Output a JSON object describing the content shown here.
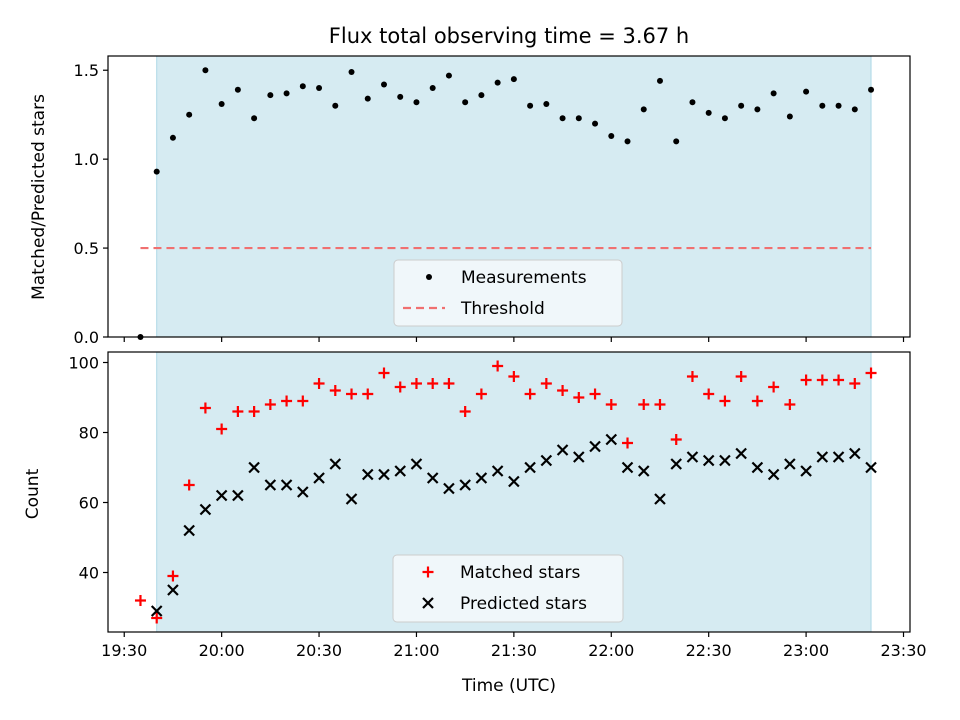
{
  "chart_data": [
    {
      "type": "scatter",
      "title": "Flux total observing time = 3.67 h",
      "ylabel": "Matched/Predicted stars",
      "xlabel": "",
      "xlim": [
        "19:25",
        "23:32"
      ],
      "ylim": [
        0,
        1.58
      ],
      "xticks": [
        "19:30",
        "20:00",
        "20:30",
        "21:00",
        "21:30",
        "22:00",
        "22:30",
        "23:00",
        "23:30"
      ],
      "yticks": [
        0.0,
        0.5,
        1.0,
        1.5
      ],
      "ytick_labels": [
        "0.0",
        "0.5",
        "1.0",
        "1.5"
      ],
      "shaded_span": [
        "19:40",
        "23:20"
      ],
      "grid": false,
      "legend_position": "lower-center",
      "series": [
        {
          "name": "Measurements",
          "kind": "scatter",
          "color": "#000000",
          "x": [
            "19:35",
            "19:40",
            "19:45",
            "19:50",
            "19:55",
            "20:00",
            "20:05",
            "20:10",
            "20:15",
            "20:20",
            "20:25",
            "20:30",
            "20:35",
            "20:40",
            "20:45",
            "20:50",
            "20:55",
            "21:00",
            "21:05",
            "21:10",
            "21:15",
            "21:20",
            "21:25",
            "21:30",
            "21:35",
            "21:40",
            "21:45",
            "21:50",
            "21:55",
            "22:00",
            "22:05",
            "22:10",
            "22:15",
            "22:20",
            "22:25",
            "22:30",
            "22:35",
            "22:40",
            "22:45",
            "22:50",
            "22:55",
            "23:00",
            "23:05",
            "23:10",
            "23:15",
            "23:20"
          ],
          "y": [
            0.0,
            0.93,
            1.12,
            1.25,
            1.5,
            1.31,
            1.39,
            1.23,
            1.36,
            1.37,
            1.41,
            1.4,
            1.3,
            1.49,
            1.34,
            1.42,
            1.35,
            1.32,
            1.4,
            1.47,
            1.32,
            1.36,
            1.43,
            1.45,
            1.3,
            1.31,
            1.23,
            1.23,
            1.2,
            1.13,
            1.1,
            1.28,
            1.44,
            1.1,
            1.32,
            1.26,
            1.23,
            1.3,
            1.28,
            1.37,
            1.24,
            1.38,
            1.3,
            1.3,
            1.28,
            1.39
          ]
        },
        {
          "name": "Threshold",
          "kind": "dashed-line",
          "color": "#f07070",
          "x": [
            "19:35",
            "23:20"
          ],
          "y": [
            0.5,
            0.5
          ]
        }
      ]
    },
    {
      "type": "scatter",
      "title": "",
      "ylabel": "Count",
      "xlabel": "Time (UTC)",
      "xlim": [
        "19:25",
        "23:32"
      ],
      "ylim": [
        23,
        103
      ],
      "xticks": [
        "19:30",
        "20:00",
        "20:30",
        "21:00",
        "21:30",
        "22:00",
        "22:30",
        "23:00",
        "23:30"
      ],
      "yticks": [
        40,
        60,
        80,
        100
      ],
      "ytick_labels": [
        "40",
        "60",
        "80",
        "100"
      ],
      "shaded_span": [
        "19:40",
        "23:20"
      ],
      "grid": false,
      "legend_position": "lower-center",
      "series": [
        {
          "name": "Matched stars",
          "kind": "plus",
          "color": "#ff0000",
          "x": [
            "19:35",
            "19:40",
            "19:45",
            "19:50",
            "19:55",
            "20:00",
            "20:05",
            "20:10",
            "20:15",
            "20:20",
            "20:25",
            "20:30",
            "20:35",
            "20:40",
            "20:45",
            "20:50",
            "20:55",
            "21:00",
            "21:05",
            "21:10",
            "21:15",
            "21:20",
            "21:25",
            "21:30",
            "21:35",
            "21:40",
            "21:45",
            "21:50",
            "21:55",
            "22:00",
            "22:05",
            "22:10",
            "22:15",
            "22:20",
            "22:25",
            "22:30",
            "22:35",
            "22:40",
            "22:45",
            "22:50",
            "22:55",
            "23:00",
            "23:05",
            "23:10",
            "23:15",
            "23:20"
          ],
          "y": [
            32,
            27,
            39,
            65,
            87,
            81,
            86,
            86,
            88,
            89,
            89,
            94,
            92,
            91,
            91,
            97,
            93,
            94,
            94,
            94,
            86,
            91,
            99,
            96,
            91,
            94,
            92,
            90,
            91,
            88,
            77,
            88,
            88,
            78,
            96,
            91,
            89,
            96,
            89,
            93,
            88,
            95,
            95,
            95,
            94,
            97
          ]
        },
        {
          "name": "Predicted stars",
          "kind": "x",
          "color": "#000000",
          "x": [
            "19:40",
            "19:45",
            "19:50",
            "19:55",
            "20:00",
            "20:05",
            "20:10",
            "20:15",
            "20:20",
            "20:25",
            "20:30",
            "20:35",
            "20:40",
            "20:45",
            "20:50",
            "20:55",
            "21:00",
            "21:05",
            "21:10",
            "21:15",
            "21:20",
            "21:25",
            "21:30",
            "21:35",
            "21:40",
            "21:45",
            "21:50",
            "21:55",
            "22:00",
            "22:05",
            "22:10",
            "22:15",
            "22:20",
            "22:25",
            "22:30",
            "22:35",
            "22:40",
            "22:45",
            "22:50",
            "22:55",
            "23:00",
            "23:05",
            "23:10",
            "23:15",
            "23:20"
          ],
          "y": [
            29,
            35,
            52,
            58,
            62,
            62,
            70,
            65,
            65,
            63,
            67,
            71,
            61,
            68,
            68,
            69,
            71,
            67,
            64,
            65,
            67,
            69,
            66,
            70,
            72,
            75,
            73,
            76,
            78,
            70,
            69,
            61,
            71,
            73,
            72,
            72,
            74,
            70,
            68,
            71,
            69,
            73,
            73,
            74,
            70
          ]
        }
      ]
    }
  ],
  "colors": {
    "shade": "#add8e6",
    "legend_bg": "#f5f9fb",
    "legend_border": "#cccccc"
  }
}
